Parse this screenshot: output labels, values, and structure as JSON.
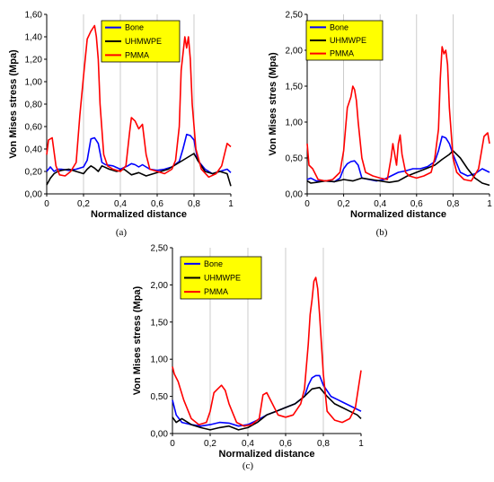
{
  "chart_data": [
    {
      "type": "line",
      "caption": "(a)",
      "xlabel": "Normalized distance",
      "ylabel": "Von Mises stress (Mpa)",
      "xlim": [
        0,
        1
      ],
      "ylim": [
        0,
        1.6
      ],
      "xticks": [
        "0",
        "0,2",
        "0,4",
        "0,6",
        "0,8",
        "1"
      ],
      "yticks": [
        "0,00",
        "0,20",
        "0,40",
        "0,60",
        "0,80",
        "1,00",
        "1,20",
        "1,40",
        "1,60"
      ],
      "grid": "vertical",
      "legend_position": "top-center",
      "series": [
        {
          "name": "Bone",
          "color": "#0000ff",
          "x": [
            0,
            0.02,
            0.04,
            0.06,
            0.08,
            0.12,
            0.16,
            0.2,
            0.22,
            0.24,
            0.26,
            0.28,
            0.3,
            0.32,
            0.36,
            0.4,
            0.44,
            0.46,
            0.48,
            0.5,
            0.52,
            0.56,
            0.6,
            0.64,
            0.68,
            0.72,
            0.74,
            0.76,
            0.78,
            0.8,
            0.82,
            0.86,
            0.9,
            0.94,
            0.98,
            1.0
          ],
          "y": [
            0.2,
            0.24,
            0.2,
            0.22,
            0.22,
            0.21,
            0.22,
            0.24,
            0.3,
            0.49,
            0.5,
            0.45,
            0.28,
            0.26,
            0.25,
            0.22,
            0.25,
            0.27,
            0.26,
            0.24,
            0.26,
            0.22,
            0.21,
            0.22,
            0.24,
            0.29,
            0.4,
            0.53,
            0.52,
            0.48,
            0.3,
            0.22,
            0.18,
            0.2,
            0.22,
            0.19
          ]
        },
        {
          "name": "UHMWPE",
          "color": "#000000",
          "x": [
            0,
            0.02,
            0.04,
            0.06,
            0.08,
            0.12,
            0.16,
            0.2,
            0.22,
            0.24,
            0.26,
            0.28,
            0.3,
            0.34,
            0.38,
            0.42,
            0.46,
            0.5,
            0.54,
            0.58,
            0.62,
            0.66,
            0.7,
            0.74,
            0.78,
            0.8,
            0.82,
            0.86,
            0.9,
            0.94,
            0.98,
            1.0
          ],
          "y": [
            0.08,
            0.14,
            0.18,
            0.2,
            0.21,
            0.22,
            0.2,
            0.18,
            0.22,
            0.25,
            0.23,
            0.2,
            0.25,
            0.22,
            0.2,
            0.22,
            0.17,
            0.19,
            0.16,
            0.18,
            0.2,
            0.22,
            0.26,
            0.3,
            0.34,
            0.36,
            0.3,
            0.2,
            0.18,
            0.2,
            0.18,
            0.07
          ]
        },
        {
          "name": "PMMA",
          "color": "#ff0000",
          "x": [
            0,
            0.01,
            0.03,
            0.05,
            0.07,
            0.1,
            0.13,
            0.16,
            0.18,
            0.2,
            0.22,
            0.24,
            0.26,
            0.27,
            0.28,
            0.29,
            0.31,
            0.33,
            0.36,
            0.4,
            0.43,
            0.45,
            0.46,
            0.48,
            0.5,
            0.52,
            0.54,
            0.56,
            0.6,
            0.64,
            0.68,
            0.7,
            0.72,
            0.73,
            0.75,
            0.76,
            0.77,
            0.78,
            0.79,
            0.81,
            0.84,
            0.88,
            0.92,
            0.95,
            0.98,
            1.0
          ],
          "y": [
            0.35,
            0.48,
            0.5,
            0.25,
            0.17,
            0.16,
            0.2,
            0.28,
            0.7,
            1.05,
            1.38,
            1.45,
            1.5,
            1.4,
            1.2,
            0.8,
            0.35,
            0.25,
            0.22,
            0.2,
            0.25,
            0.55,
            0.68,
            0.65,
            0.58,
            0.62,
            0.35,
            0.22,
            0.2,
            0.18,
            0.22,
            0.3,
            0.6,
            1.1,
            1.4,
            1.3,
            1.4,
            1.2,
            0.8,
            0.4,
            0.22,
            0.15,
            0.18,
            0.25,
            0.45,
            0.42
          ]
        }
      ]
    },
    {
      "type": "line",
      "caption": "(b)",
      "xlabel": "Normalized distance",
      "ylabel": "Von Mises stres (Mpa)",
      "xlim": [
        0,
        1
      ],
      "ylim": [
        0,
        2.5
      ],
      "xticks": [
        "0",
        "0,2",
        "0,4",
        "0,6",
        "0,8",
        "1"
      ],
      "yticks": [
        "0,00",
        "0,50",
        "1,00",
        "1,50",
        "2,00",
        "2,50"
      ],
      "grid": "vertical",
      "legend_position": "top-center",
      "series": [
        {
          "name": "Bone",
          "color": "#0000ff",
          "x": [
            0,
            0.02,
            0.05,
            0.1,
            0.15,
            0.18,
            0.2,
            0.22,
            0.24,
            0.26,
            0.28,
            0.3,
            0.34,
            0.38,
            0.42,
            0.46,
            0.5,
            0.54,
            0.58,
            0.62,
            0.66,
            0.7,
            0.72,
            0.74,
            0.76,
            0.78,
            0.8,
            0.84,
            0.88,
            0.92,
            0.96,
            1.0
          ],
          "y": [
            0.2,
            0.22,
            0.18,
            0.18,
            0.17,
            0.22,
            0.35,
            0.42,
            0.45,
            0.46,
            0.4,
            0.22,
            0.2,
            0.18,
            0.2,
            0.25,
            0.3,
            0.32,
            0.35,
            0.35,
            0.38,
            0.45,
            0.6,
            0.8,
            0.78,
            0.7,
            0.55,
            0.3,
            0.25,
            0.28,
            0.35,
            0.3
          ]
        },
        {
          "name": "UHMWPE",
          "color": "#000000",
          "x": [
            0,
            0.02,
            0.05,
            0.1,
            0.15,
            0.2,
            0.25,
            0.3,
            0.35,
            0.4,
            0.45,
            0.5,
            0.55,
            0.6,
            0.65,
            0.7,
            0.74,
            0.78,
            0.8,
            0.84,
            0.88,
            0.92,
            0.96,
            1.0
          ],
          "y": [
            0.18,
            0.15,
            0.16,
            0.18,
            0.17,
            0.2,
            0.18,
            0.22,
            0.2,
            0.18,
            0.16,
            0.18,
            0.25,
            0.3,
            0.35,
            0.4,
            0.48,
            0.55,
            0.6,
            0.5,
            0.35,
            0.22,
            0.15,
            0.12
          ]
        },
        {
          "name": "PMMA",
          "color": "#ff0000",
          "x": [
            0,
            0.01,
            0.03,
            0.06,
            0.1,
            0.14,
            0.18,
            0.2,
            0.22,
            0.24,
            0.25,
            0.26,
            0.27,
            0.28,
            0.3,
            0.32,
            0.36,
            0.4,
            0.44,
            0.46,
            0.47,
            0.49,
            0.5,
            0.51,
            0.52,
            0.54,
            0.56,
            0.6,
            0.64,
            0.68,
            0.7,
            0.72,
            0.73,
            0.74,
            0.75,
            0.76,
            0.77,
            0.78,
            0.8,
            0.82,
            0.86,
            0.9,
            0.94,
            0.97,
            0.99,
            1.0
          ],
          "y": [
            0.7,
            0.4,
            0.35,
            0.2,
            0.18,
            0.2,
            0.3,
            0.6,
            1.2,
            1.35,
            1.5,
            1.45,
            1.3,
            1.0,
            0.5,
            0.3,
            0.25,
            0.22,
            0.2,
            0.5,
            0.7,
            0.4,
            0.7,
            0.82,
            0.55,
            0.3,
            0.25,
            0.22,
            0.25,
            0.3,
            0.5,
            0.9,
            1.6,
            2.05,
            1.95,
            2.0,
            1.8,
            1.2,
            0.5,
            0.3,
            0.2,
            0.18,
            0.35,
            0.8,
            0.85,
            0.7
          ]
        }
      ]
    },
    {
      "type": "line",
      "caption": "(c)",
      "xlabel": "Normalized distance",
      "ylabel": "Von Mises stress (Mpa)",
      "xlim": [
        0,
        1
      ],
      "ylim": [
        0,
        2.5
      ],
      "xticks": [
        "0",
        "0,2",
        "0,4",
        "0,6",
        "0,8",
        "1"
      ],
      "yticks": [
        "0,00",
        "0,50",
        "1,00",
        "1,50",
        "2,00",
        "2,50"
      ],
      "grid": "vertical",
      "legend_position": "top-left",
      "series": [
        {
          "name": "Bone",
          "color": "#0000ff",
          "x": [
            0,
            0.02,
            0.05,
            0.1,
            0.15,
            0.2,
            0.25,
            0.3,
            0.35,
            0.4,
            0.45,
            0.5,
            0.55,
            0.6,
            0.65,
            0.7,
            0.72,
            0.74,
            0.76,
            0.78,
            0.8,
            0.84,
            0.88,
            0.92,
            0.96,
            1.0
          ],
          "y": [
            0.45,
            0.25,
            0.15,
            0.12,
            0.1,
            0.12,
            0.15,
            0.14,
            0.1,
            0.12,
            0.18,
            0.25,
            0.3,
            0.35,
            0.4,
            0.5,
            0.65,
            0.75,
            0.78,
            0.78,
            0.65,
            0.5,
            0.45,
            0.4,
            0.35,
            0.3
          ]
        },
        {
          "name": "UHMWPE",
          "color": "#000000",
          "x": [
            0,
            0.02,
            0.05,
            0.1,
            0.15,
            0.2,
            0.25,
            0.3,
            0.35,
            0.4,
            0.45,
            0.5,
            0.55,
            0.6,
            0.65,
            0.7,
            0.74,
            0.78,
            0.82,
            0.86,
            0.9,
            0.94,
            0.98,
            1.0
          ],
          "y": [
            0.22,
            0.15,
            0.2,
            0.12,
            0.08,
            0.05,
            0.08,
            0.1,
            0.05,
            0.08,
            0.15,
            0.25,
            0.3,
            0.35,
            0.4,
            0.5,
            0.6,
            0.62,
            0.5,
            0.4,
            0.35,
            0.3,
            0.25,
            0.2
          ]
        },
        {
          "name": "PMMA",
          "color": "#ff0000",
          "x": [
            0,
            0.01,
            0.03,
            0.06,
            0.1,
            0.14,
            0.18,
            0.2,
            0.22,
            0.24,
            0.26,
            0.28,
            0.3,
            0.34,
            0.38,
            0.42,
            0.46,
            0.48,
            0.5,
            0.52,
            0.56,
            0.6,
            0.64,
            0.68,
            0.7,
            0.72,
            0.73,
            0.74,
            0.75,
            0.76,
            0.77,
            0.78,
            0.8,
            0.82,
            0.86,
            0.9,
            0.94,
            0.97,
            1.0
          ],
          "y": [
            0.9,
            0.8,
            0.7,
            0.45,
            0.2,
            0.12,
            0.15,
            0.3,
            0.55,
            0.6,
            0.65,
            0.58,
            0.4,
            0.15,
            0.1,
            0.12,
            0.2,
            0.52,
            0.55,
            0.45,
            0.25,
            0.22,
            0.25,
            0.4,
            0.6,
            1.2,
            1.6,
            1.8,
            2.05,
            2.1,
            1.95,
            1.6,
            0.8,
            0.3,
            0.18,
            0.15,
            0.2,
            0.35,
            0.85
          ]
        }
      ]
    }
  ]
}
